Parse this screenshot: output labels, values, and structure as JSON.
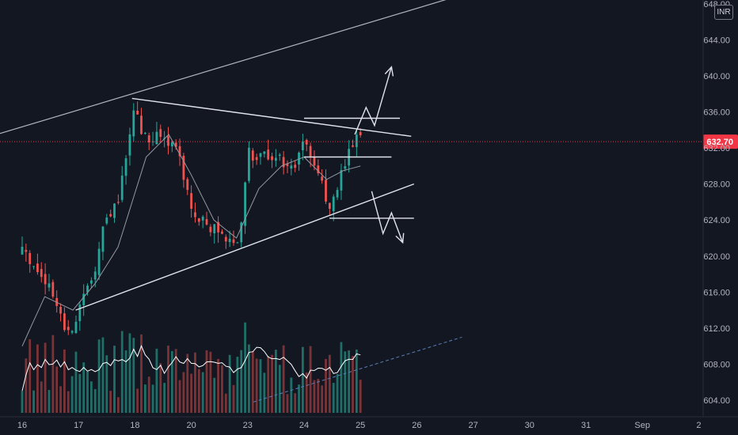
{
  "currency": "INR",
  "colors": {
    "background": "#131722",
    "up": "#26a69a",
    "down": "#ef5350",
    "up_volume": "#1f6e68",
    "down_volume": "#7a3337",
    "ma": "#9598a1",
    "drawing": "#e0e3eb",
    "last_price": "#f23645",
    "axis_text": "#b2b5be"
  },
  "chart_data": {
    "type": "candlestick",
    "y_axis": {
      "ticks": [
        "604.00",
        "608.00",
        "612.00",
        "616.00",
        "620.00",
        "624.00",
        "628.00",
        "632.00",
        "636.00",
        "640.00",
        "644.00",
        "648.00"
      ],
      "range": [
        603,
        649
      ]
    },
    "x_axis": {
      "ticks": [
        "16",
        "17",
        "18",
        "20",
        "23",
        "24",
        "25",
        "26",
        "27",
        "30",
        "31",
        "Sep",
        "2"
      ]
    },
    "last_price": 632.7,
    "last_price_label": "632.70",
    "anchors": [
      {
        "t": 0.0,
        "p": 620.5
      },
      {
        "t": 0.3,
        "p": 618.5
      },
      {
        "t": 0.5,
        "p": 616.0
      },
      {
        "t": 0.75,
        "p": 612.5
      },
      {
        "t": 0.9,
        "p": 611.5
      },
      {
        "t": 1.0,
        "p": 614.5
      },
      {
        "t": 1.25,
        "p": 617.5
      },
      {
        "t": 1.45,
        "p": 623.5
      },
      {
        "t": 1.7,
        "p": 626.0
      },
      {
        "t": 1.85,
        "p": 631.5
      },
      {
        "t": 2.0,
        "p": 636.5
      },
      {
        "t": 2.1,
        "p": 634.0
      },
      {
        "t": 2.3,
        "p": 633.0
      },
      {
        "t": 2.6,
        "p": 633.0
      },
      {
        "t": 2.8,
        "p": 631.0
      },
      {
        "t": 3.0,
        "p": 624.5
      },
      {
        "t": 3.2,
        "p": 624.0
      },
      {
        "t": 3.4,
        "p": 623.0
      },
      {
        "t": 3.6,
        "p": 622.5
      },
      {
        "t": 3.85,
        "p": 621.0
      },
      {
        "t": 4.0,
        "p": 632.0
      },
      {
        "t": 4.2,
        "p": 630.5
      },
      {
        "t": 4.4,
        "p": 631.5
      },
      {
        "t": 4.6,
        "p": 630.5
      },
      {
        "t": 4.85,
        "p": 630.0
      },
      {
        "t": 5.0,
        "p": 633.5
      },
      {
        "t": 5.25,
        "p": 629.5
      },
      {
        "t": 5.45,
        "p": 625.0
      },
      {
        "t": 5.7,
        "p": 629.5
      },
      {
        "t": 5.9,
        "p": 633.0
      },
      {
        "t": 6.0,
        "p": 633.5
      }
    ],
    "moving_average_anchors": [
      {
        "t": 0.0,
        "p": 610.0
      },
      {
        "t": 0.4,
        "p": 615.5
      },
      {
        "t": 0.9,
        "p": 614.0
      },
      {
        "t": 1.3,
        "p": 617.0
      },
      {
        "t": 1.7,
        "p": 621.0
      },
      {
        "t": 2.2,
        "p": 631.0
      },
      {
        "t": 2.6,
        "p": 633.5
      },
      {
        "t": 3.0,
        "p": 629.0
      },
      {
        "t": 3.4,
        "p": 624.0
      },
      {
        "t": 3.8,
        "p": 622.0
      },
      {
        "t": 4.2,
        "p": 627.5
      },
      {
        "t": 4.6,
        "p": 630.0
      },
      {
        "t": 5.0,
        "p": 631.0
      },
      {
        "t": 5.4,
        "p": 628.5
      },
      {
        "t": 5.7,
        "p": 629.5
      },
      {
        "t": 6.0,
        "p": 630.0
      }
    ],
    "drawings": {
      "upper_channel": [
        {
          "t": -0.45,
          "p": 633.5
        },
        {
          "t": 7.8,
          "p": 649.0
        }
      ],
      "lower_channel": [
        {
          "t": 0.95,
          "p": 614.0
        },
        {
          "t": 6.95,
          "p": 628.0
        }
      ],
      "descending_resistance": [
        {
          "t": 1.95,
          "p": 637.5
        },
        {
          "t": 6.9,
          "p": 633.3
        }
      ],
      "resistance_level": [
        {
          "t": 5.0,
          "p": 635.3
        },
        {
          "t": 6.7,
          "p": 635.3
        }
      ],
      "mid_level": [
        {
          "t": 5.0,
          "p": 631.0
        },
        {
          "t": 6.55,
          "p": 631.0
        }
      ],
      "support_level": [
        {
          "t": 5.45,
          "p": 624.2
        },
        {
          "t": 6.95,
          "p": 624.2
        }
      ],
      "bullish_projection": [
        {
          "t": 5.9,
          "p": 633.5
        },
        {
          "t": 6.1,
          "p": 636.5
        },
        {
          "t": 6.25,
          "p": 634.5
        },
        {
          "t": 6.55,
          "p": 641.0
        }
      ],
      "bearish_projection": [
        {
          "t": 6.2,
          "p": 627.2
        },
        {
          "t": 6.4,
          "p": 622.5
        },
        {
          "t": 6.55,
          "p": 624.8
        },
        {
          "t": 6.75,
          "p": 621.5
        }
      ],
      "volume_trend": [
        {
          "t": 4.1,
          "p": 603.8
        },
        {
          "t": 7.8,
          "p": 611.0
        }
      ]
    }
  }
}
